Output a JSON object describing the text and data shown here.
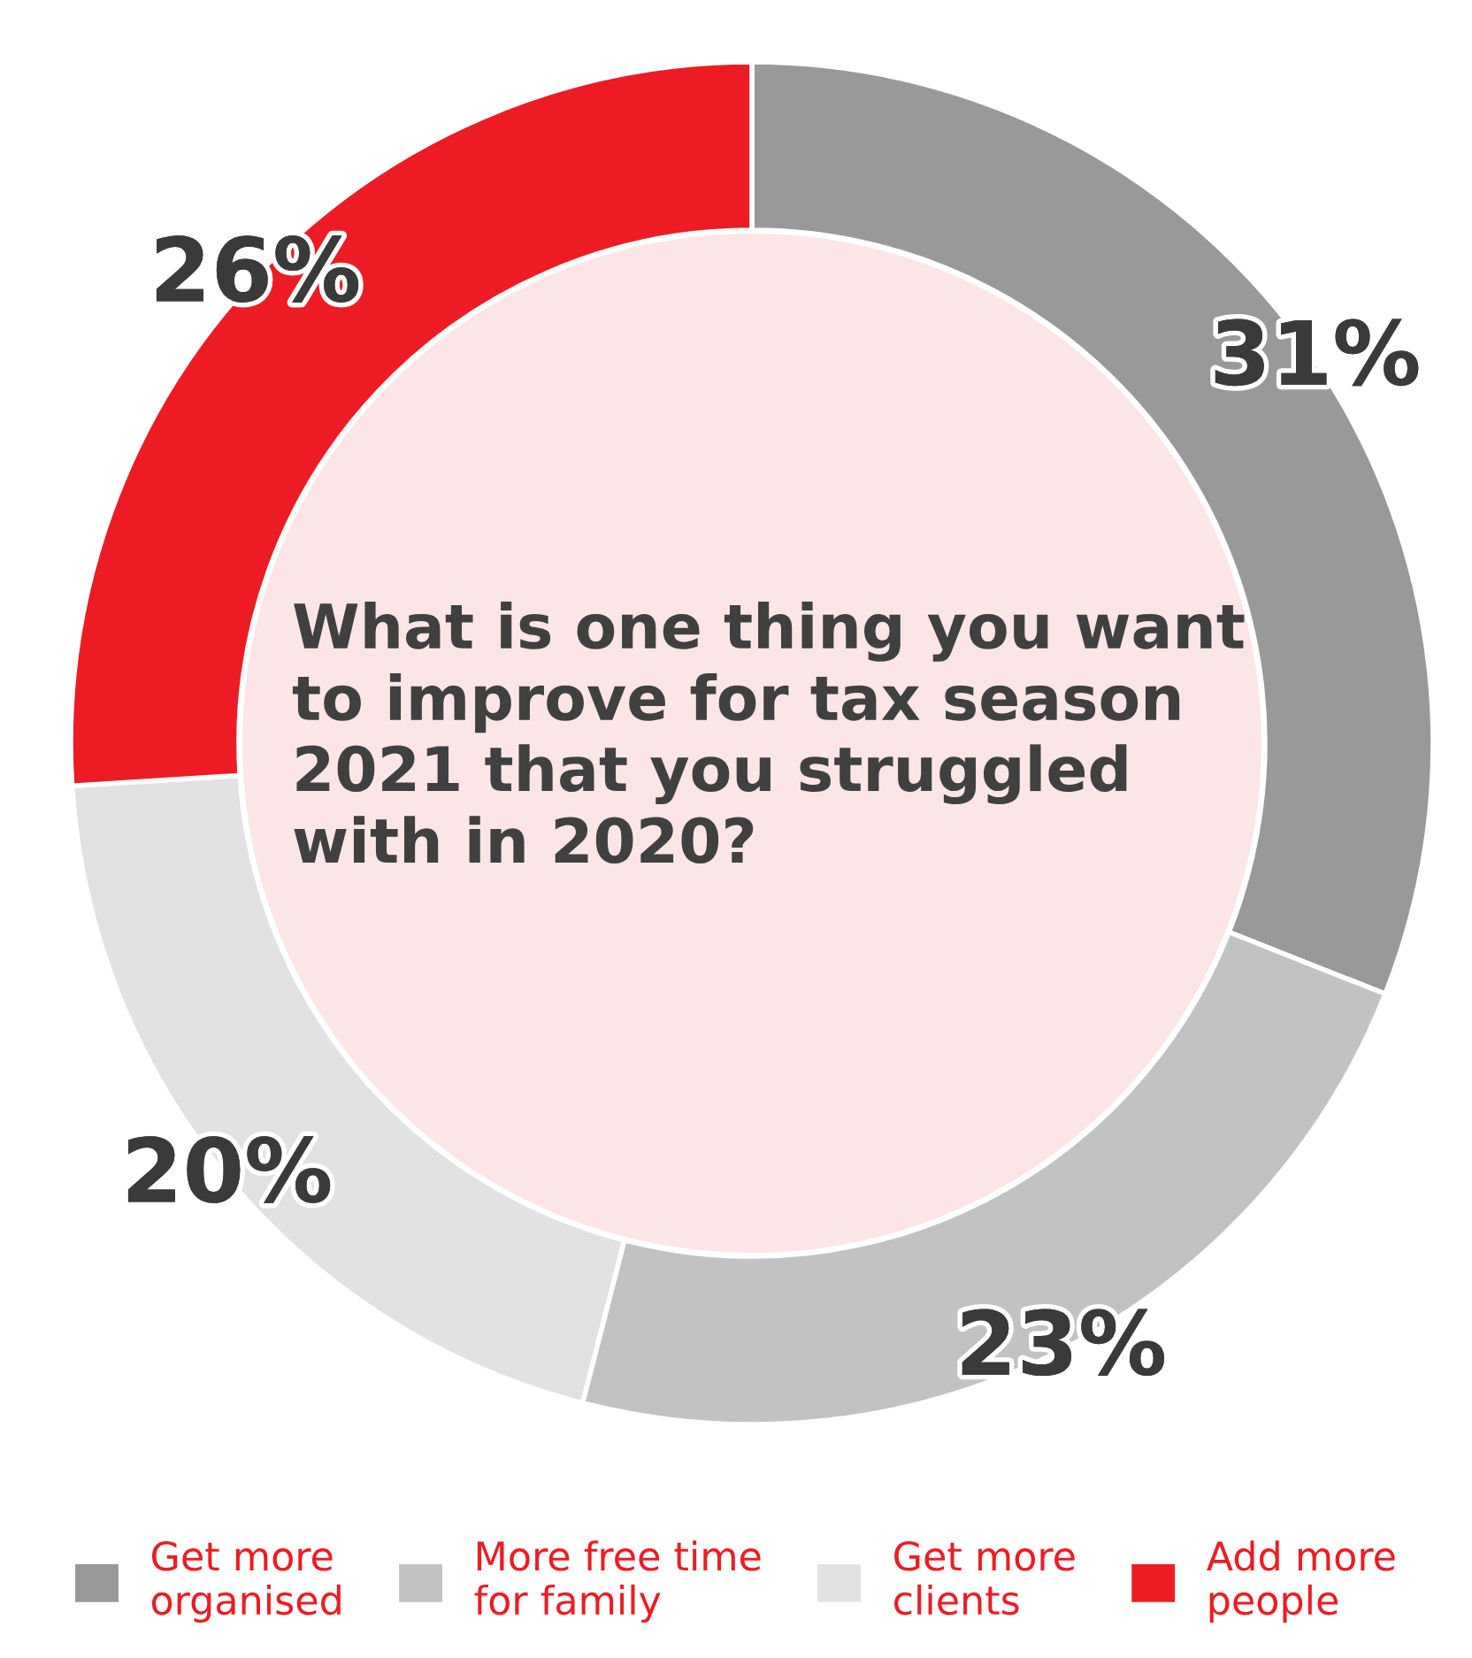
{
  "chart_data": {
    "type": "donut",
    "title": "What is one thing you want\nto improve for tax season\n2021 that you struggled\nwith in 2020?",
    "categories": [
      "Get more\norganised",
      "More free time\nfor family",
      "Get more\nclients",
      "Add more\npeople"
    ],
    "values": [
      31,
      23,
      20,
      26
    ],
    "colors": [
      "#999999",
      "#c2c2c2",
      "#e2e2e2",
      "#ed1c24"
    ],
    "value_labels": [
      "31%",
      "23%",
      "20%",
      "26%"
    ],
    "legend": "bottom"
  }
}
